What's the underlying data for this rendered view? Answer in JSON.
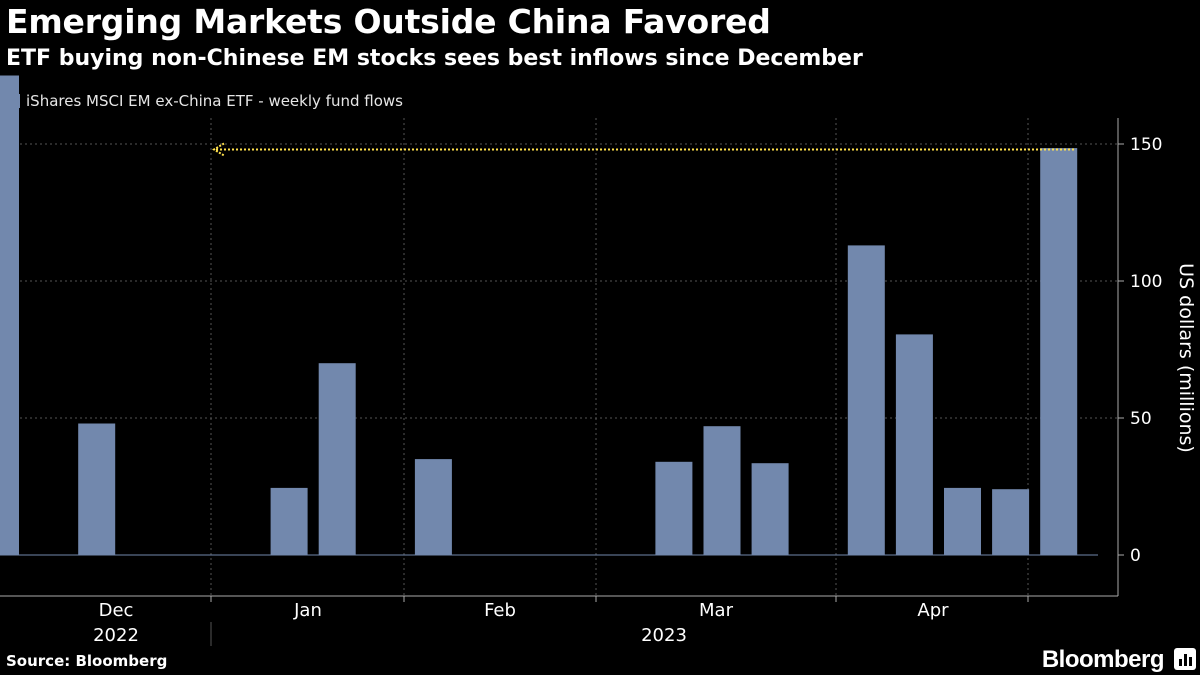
{
  "header": {
    "title": "Emerging Markets Outside China Favored",
    "subtitle": "ETF buying non-Chinese EM stocks sees best inflows since December"
  },
  "legend": {
    "label": "iShares MSCI EM ex-China ETF - weekly fund flows",
    "color": "#7288ad"
  },
  "footer": {
    "source": "Source: Bloomberg",
    "brand": "Bloomberg"
  },
  "chart_data": {
    "type": "bar",
    "title": "Emerging Markets Outside China Favored",
    "subtitle": "ETF buying non-Chinese EM stocks sees best inflows since December",
    "ylabel": "US dollars (millions)",
    "ylim": [
      -13,
      190
    ],
    "yticks": [
      0,
      50,
      100,
      150
    ],
    "grid": true,
    "legend_placement": "top-left",
    "bar_color": "#7288ad",
    "reference_line": {
      "value": 148,
      "color": "#ffe14d",
      "style": "dotted-arrow"
    },
    "x_month_labels": [
      "Dec",
      "Jan",
      "Feb",
      "Mar",
      "Apr"
    ],
    "x_year_labels": [
      "2022",
      "2023"
    ],
    "series": [
      {
        "name": "iShares MSCI EM ex-China ETF - weekly fund flows",
        "values": [
          175,
          0,
          48,
          0,
          0,
          0,
          24.5,
          70,
          0,
          35,
          0,
          0,
          0,
          0,
          34,
          47,
          33.5,
          0,
          113,
          80.5,
          24.5,
          24,
          148.5
        ]
      }
    ]
  }
}
